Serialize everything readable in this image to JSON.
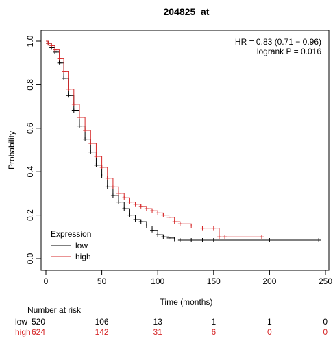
{
  "chart_data": {
    "type": "line",
    "title": "204825_at",
    "xlabel": "Time (months)",
    "ylabel": "Probability",
    "xlim": [
      0,
      250
    ],
    "ylim": [
      0,
      1
    ],
    "xticks": [
      0,
      50,
      100,
      150,
      200,
      250
    ],
    "yticks": [
      0.0,
      0.2,
      0.4,
      0.6,
      0.8,
      1.0
    ],
    "annotations": [
      "HR = 0.83 (0.71 − 0.96)",
      "logrank P = 0.016"
    ],
    "legend": {
      "title": "Expression",
      "position": "bottom-left",
      "entries": [
        "low",
        "high"
      ]
    },
    "colors": {
      "low": "#000000",
      "high": "#d62728"
    },
    "series": [
      {
        "name": "low",
        "color": "#000000",
        "x": [
          0,
          2,
          5,
          8,
          12,
          16,
          20,
          25,
          30,
          35,
          40,
          45,
          50,
          55,
          60,
          65,
          70,
          75,
          80,
          85,
          90,
          95,
          100,
          105,
          110,
          115,
          120,
          130,
          140,
          150,
          200,
          244
        ],
        "y": [
          1.0,
          0.99,
          0.97,
          0.95,
          0.9,
          0.83,
          0.75,
          0.68,
          0.61,
          0.55,
          0.49,
          0.43,
          0.38,
          0.33,
          0.29,
          0.26,
          0.23,
          0.2,
          0.18,
          0.17,
          0.15,
          0.13,
          0.11,
          0.1,
          0.095,
          0.09,
          0.085,
          0.085,
          0.085,
          0.085,
          0.085,
          0.085
        ]
      },
      {
        "name": "high",
        "color": "#d62728",
        "x": [
          0,
          2,
          5,
          8,
          12,
          16,
          20,
          25,
          30,
          35,
          40,
          45,
          50,
          55,
          60,
          65,
          70,
          75,
          80,
          85,
          90,
          95,
          100,
          105,
          110,
          115,
          120,
          130,
          140,
          150,
          155,
          160,
          193
        ],
        "y": [
          1.0,
          0.99,
          0.98,
          0.96,
          0.92,
          0.86,
          0.78,
          0.71,
          0.65,
          0.59,
          0.53,
          0.47,
          0.42,
          0.37,
          0.33,
          0.3,
          0.28,
          0.26,
          0.25,
          0.24,
          0.23,
          0.22,
          0.21,
          0.2,
          0.19,
          0.17,
          0.16,
          0.15,
          0.14,
          0.14,
          0.1,
          0.1,
          0.1
        ]
      }
    ],
    "risk_table": {
      "heading": "Number at risk",
      "times": [
        0,
        50,
        100,
        150,
        200,
        250
      ],
      "rows": [
        {
          "label": "low",
          "color": "#000000",
          "values": [
            "520",
            "106",
            "13",
            "1",
            "1",
            "0"
          ]
        },
        {
          "label": "high",
          "color": "#d62728",
          "values": [
            "624",
            "142",
            "31",
            "6",
            "0",
            "0"
          ]
        }
      ]
    }
  }
}
